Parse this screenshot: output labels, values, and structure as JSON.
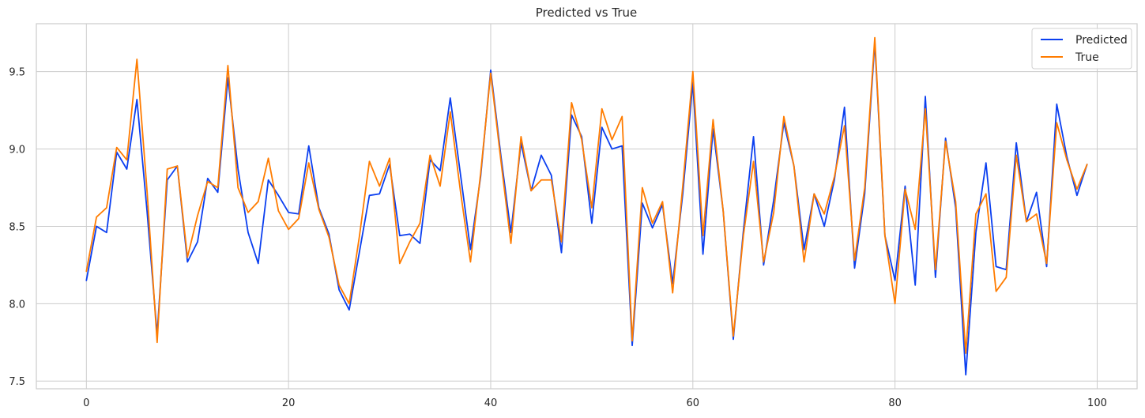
{
  "chart_data": {
    "type": "line",
    "title": "Predicted vs True",
    "xlabel": "",
    "ylabel": "",
    "xlim": [
      -4.95,
      103.95
    ],
    "ylim": [
      7.45,
      9.81
    ],
    "xticks": [
      0,
      20,
      40,
      60,
      80,
      100
    ],
    "xtick_labels": [
      "0",
      "20",
      "40",
      "60",
      "80",
      "100"
    ],
    "yticks": [
      7.5,
      8.0,
      8.5,
      9.0,
      9.5
    ],
    "ytick_labels": [
      "7.5",
      "8.0",
      "8.5",
      "9.0",
      "9.5"
    ],
    "grid": true,
    "legend_position": "top-right",
    "x": [
      0,
      1,
      2,
      3,
      4,
      5,
      6,
      7,
      8,
      9,
      10,
      11,
      12,
      13,
      14,
      15,
      16,
      17,
      18,
      19,
      20,
      21,
      22,
      23,
      24,
      25,
      26,
      27,
      28,
      29,
      30,
      31,
      32,
      33,
      34,
      35,
      36,
      37,
      38,
      39,
      40,
      41,
      42,
      43,
      44,
      45,
      46,
      47,
      48,
      49,
      50,
      51,
      52,
      53,
      54,
      55,
      56,
      57,
      58,
      59,
      60,
      61,
      62,
      63,
      64,
      65,
      66,
      67,
      68,
      69,
      70,
      71,
      72,
      73,
      74,
      75,
      76,
      77,
      78,
      79,
      80,
      81,
      82,
      83,
      84,
      85,
      86,
      87,
      88,
      89,
      90,
      91,
      92,
      93,
      94,
      95,
      96,
      97,
      98,
      99
    ],
    "series": [
      {
        "name": "Predicted",
        "color": "#0b3ff0",
        "values": [
          8.15,
          8.5,
          8.46,
          8.98,
          8.87,
          9.32,
          8.6,
          7.8,
          8.8,
          8.89,
          8.27,
          8.4,
          8.81,
          8.72,
          9.46,
          8.87,
          8.46,
          8.26,
          8.8,
          8.7,
          8.59,
          8.58,
          9.02,
          8.62,
          8.45,
          8.09,
          7.96,
          8.33,
          8.7,
          8.71,
          8.9,
          8.44,
          8.45,
          8.39,
          8.93,
          8.86,
          9.33,
          8.84,
          8.35,
          8.82,
          9.51,
          8.96,
          8.46,
          9.04,
          8.73,
          8.96,
          8.83,
          8.33,
          9.22,
          9.08,
          8.52,
          9.14,
          9.0,
          9.02,
          7.73,
          8.65,
          8.49,
          8.64,
          8.13,
          8.71,
          9.43,
          8.32,
          9.13,
          8.6,
          7.77,
          8.47,
          9.08,
          8.25,
          8.67,
          9.17,
          8.89,
          8.35,
          8.71,
          8.5,
          8.8,
          9.27,
          8.23,
          8.71,
          9.69,
          8.44,
          8.15,
          8.76,
          8.12,
          9.34,
          8.17,
          9.07,
          8.62,
          7.54,
          8.46,
          8.91,
          8.24,
          8.22,
          9.04,
          8.53,
          8.72,
          8.24,
          9.29,
          8.95,
          8.7,
          8.9
        ]
      },
      {
        "name": "True",
        "color": "#ff7c00",
        "values": [
          8.21,
          8.56,
          8.62,
          9.01,
          8.93,
          9.58,
          8.73,
          7.75,
          8.87,
          8.89,
          8.3,
          8.57,
          8.79,
          8.75,
          9.54,
          8.75,
          8.59,
          8.66,
          8.94,
          8.6,
          8.48,
          8.55,
          8.91,
          8.61,
          8.43,
          8.12,
          8.0,
          8.43,
          8.92,
          8.76,
          8.94,
          8.26,
          8.4,
          8.52,
          8.96,
          8.76,
          9.24,
          8.73,
          8.27,
          8.84,
          9.49,
          8.93,
          8.39,
          9.08,
          8.73,
          8.8,
          8.8,
          8.4,
          9.3,
          9.06,
          8.62,
          9.26,
          9.06,
          9.21,
          7.76,
          8.75,
          8.52,
          8.66,
          8.07,
          8.76,
          9.5,
          8.44,
          9.19,
          8.6,
          7.79,
          8.44,
          8.92,
          8.27,
          8.59,
          9.21,
          8.89,
          8.27,
          8.71,
          8.58,
          8.82,
          9.15,
          8.28,
          8.75,
          9.72,
          8.44,
          8.0,
          8.74,
          8.48,
          9.26,
          8.22,
          9.05,
          8.66,
          7.68,
          8.58,
          8.71,
          8.08,
          8.17,
          8.96,
          8.53,
          8.58,
          8.26,
          9.17,
          8.93,
          8.74,
          8.9
        ]
      }
    ]
  }
}
